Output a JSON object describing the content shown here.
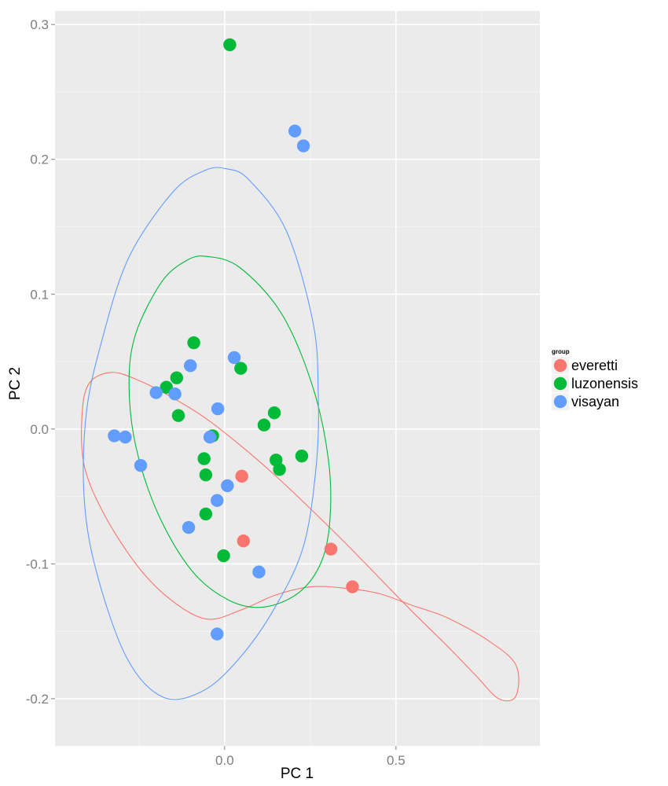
{
  "chart_data": {
    "type": "scatter",
    "xlabel": "PC 1",
    "ylabel": "PC 2",
    "xlim": [
      -0.495,
      0.92
    ],
    "ylim": [
      -0.235,
      0.31
    ],
    "x_ticks": [
      0.0,
      0.5
    ],
    "x_tick_labels": [
      "0.0",
      "0.5"
    ],
    "y_ticks": [
      -0.2,
      -0.1,
      0.0,
      0.1,
      0.2,
      0.3
    ],
    "y_tick_labels": [
      "-0.2",
      "-0.1",
      "0.0",
      "0.1",
      "0.2",
      "0.3"
    ],
    "grid": true,
    "legend": {
      "title": "group",
      "placement": "right"
    },
    "series": [
      {
        "name": "everetti",
        "color": "#F8766D",
        "points": [
          {
            "x": 0.05,
            "y": -0.035
          },
          {
            "x": 0.055,
            "y": -0.083
          },
          {
            "x": 0.31,
            "y": -0.089
          },
          {
            "x": 0.373,
            "y": -0.117
          }
        ],
        "ellipse": [
          [
            -0.416,
            0.011
          ],
          [
            -0.395,
            0.034
          ],
          [
            -0.33,
            0.042
          ],
          [
            -0.25,
            0.036
          ],
          [
            -0.15,
            0.023
          ],
          [
            -0.05,
            0.007
          ],
          [
            0.05,
            -0.013
          ],
          [
            0.15,
            -0.035
          ],
          [
            0.25,
            -0.059
          ],
          [
            0.35,
            -0.084
          ],
          [
            0.45,
            -0.11
          ],
          [
            0.55,
            -0.136
          ],
          [
            0.65,
            -0.161
          ],
          [
            0.73,
            -0.182
          ],
          [
            0.8,
            -0.2
          ],
          [
            0.85,
            -0.198
          ],
          [
            0.85,
            -0.175
          ],
          [
            0.77,
            -0.157
          ],
          [
            0.65,
            -0.14
          ],
          [
            0.55,
            -0.131
          ],
          [
            0.45,
            -0.122
          ],
          [
            0.35,
            -0.118
          ],
          [
            0.25,
            -0.117
          ],
          [
            0.15,
            -0.123
          ],
          [
            0.05,
            -0.134
          ],
          [
            -0.05,
            -0.141
          ],
          [
            -0.15,
            -0.128
          ],
          [
            -0.25,
            -0.103
          ],
          [
            -0.35,
            -0.064
          ],
          [
            -0.41,
            -0.027
          ],
          [
            -0.416,
            0.011
          ]
        ]
      },
      {
        "name": "luzonensis",
        "color": "#00BA38",
        "points": [
          {
            "x": 0.015,
            "y": 0.285
          },
          {
            "x": -0.09,
            "y": 0.064
          },
          {
            "x": 0.047,
            "y": 0.045
          },
          {
            "x": -0.14,
            "y": 0.038
          },
          {
            "x": -0.17,
            "y": 0.031
          },
          {
            "x": -0.135,
            "y": 0.01
          },
          {
            "x": 0.145,
            "y": 0.012
          },
          {
            "x": 0.115,
            "y": 0.003
          },
          {
            "x": -0.035,
            "y": -0.005
          },
          {
            "x": -0.06,
            "y": -0.022
          },
          {
            "x": 0.15,
            "y": -0.023
          },
          {
            "x": 0.225,
            "y": -0.02
          },
          {
            "x": -0.055,
            "y": -0.034
          },
          {
            "x": 0.16,
            "y": -0.03
          },
          {
            "x": -0.055,
            "y": -0.063
          },
          {
            "x": -0.003,
            "y": -0.094
          }
        ],
        "ellipse": [
          [
            -0.053,
            0.128
          ],
          [
            0.043,
            0.12
          ],
          [
            0.165,
            0.086
          ],
          [
            0.255,
            0.033
          ],
          [
            0.302,
            -0.021
          ],
          [
            0.308,
            -0.065
          ],
          [
            0.283,
            -0.098
          ],
          [
            0.218,
            -0.121
          ],
          [
            0.115,
            -0.132
          ],
          [
            0.013,
            -0.127
          ],
          [
            -0.096,
            -0.105
          ],
          [
            -0.194,
            -0.063
          ],
          [
            -0.259,
            -0.013
          ],
          [
            -0.279,
            0.034
          ],
          [
            -0.259,
            0.071
          ],
          [
            -0.184,
            0.109
          ],
          [
            -0.111,
            0.125
          ],
          [
            -0.053,
            0.128
          ]
        ]
      },
      {
        "name": "visayan",
        "color": "#619CFF",
        "points": [
          {
            "x": 0.205,
            "y": 0.221
          },
          {
            "x": 0.23,
            "y": 0.21
          },
          {
            "x": 0.028,
            "y": 0.053
          },
          {
            "x": -0.1,
            "y": 0.047
          },
          {
            "x": -0.2,
            "y": 0.027
          },
          {
            "x": -0.145,
            "y": 0.026
          },
          {
            "x": -0.02,
            "y": 0.015
          },
          {
            "x": -0.043,
            "y": -0.006
          },
          {
            "x": -0.322,
            "y": -0.005
          },
          {
            "x": -0.29,
            "y": -0.006
          },
          {
            "x": -0.245,
            "y": -0.027
          },
          {
            "x": 0.008,
            "y": -0.042
          },
          {
            "x": -0.022,
            "y": -0.053
          },
          {
            "x": -0.105,
            "y": -0.073
          },
          {
            "x": 0.1,
            "y": -0.106
          },
          {
            "x": -0.022,
            "y": -0.152
          }
        ],
        "ellipse": [
          [
            0.005,
            0.193
          ],
          [
            0.07,
            0.185
          ],
          [
            0.18,
            0.147
          ],
          [
            0.258,
            0.079
          ],
          [
            0.273,
            0.028
          ],
          [
            0.268,
            -0.025
          ],
          [
            0.23,
            -0.087
          ],
          [
            0.143,
            -0.134
          ],
          [
            0.043,
            -0.17
          ],
          [
            -0.062,
            -0.194
          ],
          [
            -0.178,
            -0.199
          ],
          [
            -0.285,
            -0.17
          ],
          [
            -0.374,
            -0.106
          ],
          [
            -0.41,
            -0.051
          ],
          [
            -0.404,
            0.011
          ],
          [
            -0.36,
            0.064
          ],
          [
            -0.28,
            0.127
          ],
          [
            -0.15,
            0.176
          ],
          [
            -0.055,
            0.192
          ],
          [
            0.005,
            0.193
          ]
        ]
      }
    ]
  }
}
